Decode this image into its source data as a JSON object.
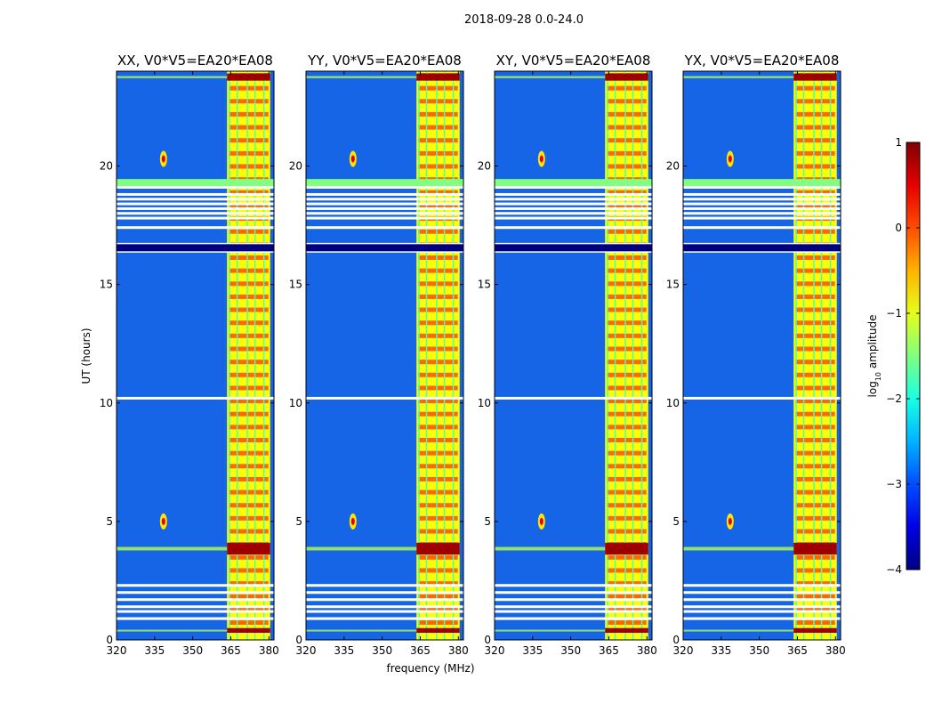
{
  "figure": {
    "suptitle": "2018-09-28 0.0-24.0"
  },
  "chart_data": {
    "type": "heatmap",
    "xlabel": "frequency (MHz)",
    "ylabel": "UT (hours)",
    "xlim": [
      320,
      382
    ],
    "ylim": [
      0,
      24
    ],
    "xticks": [
      320,
      335,
      350,
      365,
      380
    ],
    "yticks": [
      0,
      5,
      10,
      15,
      20
    ],
    "colorbar": {
      "label_prefix": "log",
      "label_sub": "10",
      "label_suffix": " amplitude",
      "range": [
        -4,
        1
      ],
      "ticks": [
        -4,
        -3,
        -2,
        -1,
        0,
        1
      ],
      "tick_labels": [
        "−4",
        "−3",
        "−2",
        "−1",
        "0",
        "1"
      ],
      "colormap": "jet"
    },
    "panels": [
      {
        "title": "XX, V0*V5=EA20*EA08",
        "polarization": "XX"
      },
      {
        "title": "YY, V0*V5=EA20*EA08",
        "polarization": "YY"
      },
      {
        "title": "XY, V0*V5=EA20*EA08",
        "polarization": "XY"
      },
      {
        "title": "YX, V0*V5=EA20*EA08",
        "polarization": "YX"
      }
    ],
    "rfi_band_mhz": [
      363.5,
      380.5
    ],
    "rfi_channels_mhz": [
      364.5,
      367.5,
      371.5,
      374.5,
      378
    ],
    "strong_rfi_ut_hours": [
      [
        3.6,
        4.1
      ],
      [
        0.3,
        0.5
      ],
      [
        23.6,
        23.9
      ]
    ],
    "point_sources": [
      {
        "freq_mhz": 338.5,
        "ut": 20.3
      },
      {
        "freq_mhz": 338.5,
        "ut": 5.0
      }
    ],
    "flagged_ut_hours": [
      0.9,
      1.2,
      1.4,
      1.7,
      2.0,
      2.3,
      10.2,
      16.4,
      16.7,
      17.4,
      17.8,
      18.0,
      18.2,
      18.4,
      18.6,
      18.8,
      19.1
    ]
  },
  "colors": {
    "background": "#00007f",
    "field": "#1565e6"
  }
}
